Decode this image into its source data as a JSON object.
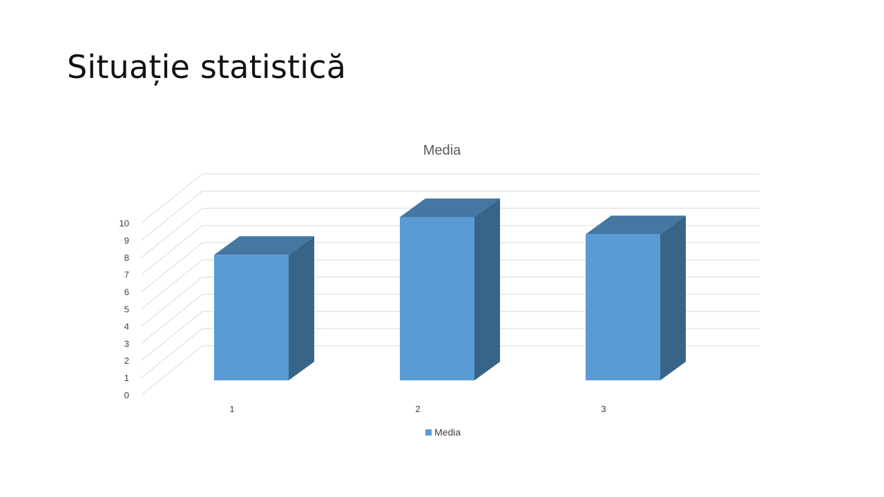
{
  "slide": {
    "title": "Situație statistică"
  },
  "colors": {
    "bar_front": "#5b9bd5",
    "bar_top": "#4577a3",
    "bar_side": "#386488",
    "grid": "#d9d9d9",
    "text": "#404040",
    "title": "#595959"
  },
  "chart_data": {
    "type": "bar",
    "style": "3d-column",
    "title": "Media",
    "categories": [
      "1",
      "2",
      "3"
    ],
    "series": [
      {
        "name": "Media",
        "values": [
          7.3,
          9.5,
          8.5
        ]
      }
    ],
    "ylim": [
      0,
      10
    ],
    "yticks": [
      "0",
      "1",
      "2",
      "3",
      "4",
      "5",
      "6",
      "7",
      "8",
      "9",
      "10"
    ],
    "grid": true,
    "legend": "bottom"
  }
}
